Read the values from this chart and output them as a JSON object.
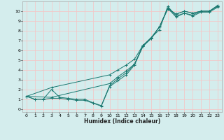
{
  "xlabel": "Humidex (Indice chaleur)",
  "xlim": [
    -0.5,
    23.5
  ],
  "ylim": [
    -0.3,
    11.0
  ],
  "xticks": [
    0,
    1,
    2,
    3,
    4,
    5,
    6,
    7,
    8,
    9,
    10,
    11,
    12,
    13,
    14,
    15,
    16,
    17,
    18,
    19,
    20,
    21,
    22,
    23
  ],
  "yticks": [
    0,
    1,
    2,
    3,
    4,
    5,
    6,
    7,
    8,
    9,
    10
  ],
  "line_color": "#1a7870",
  "bg_color": "#d4eded",
  "grid_color": "#f2c8c8",
  "line1_x": [
    0,
    1,
    2,
    3,
    4,
    5,
    6,
    7,
    8,
    9,
    10,
    11,
    12,
    13,
    14,
    15,
    16,
    17,
    18,
    19,
    20,
    21,
    22,
    23
  ],
  "line1_y": [
    1.3,
    1.0,
    1.0,
    1.1,
    1.1,
    1.0,
    0.9,
    0.9,
    0.6,
    0.3,
    2.3,
    2.9,
    3.5,
    4.5,
    6.4,
    7.2,
    8.4,
    10.2,
    9.7,
    10.0,
    9.8,
    10.0,
    10.0,
    10.5
  ],
  "line2_x": [
    0,
    1,
    2,
    3,
    4,
    5,
    6,
    7,
    8,
    9,
    10,
    11,
    12,
    13,
    14,
    15,
    16,
    17,
    18,
    19,
    20,
    21,
    22,
    23
  ],
  "line2_y": [
    1.3,
    1.0,
    1.0,
    2.0,
    1.2,
    1.1,
    1.0,
    1.0,
    0.65,
    0.35,
    2.4,
    3.1,
    3.7,
    4.6,
    6.4,
    7.3,
    8.4,
    10.3,
    9.7,
    10.0,
    9.8,
    10.0,
    10.0,
    10.5
  ],
  "line3_x": [
    0,
    3,
    10,
    11,
    12,
    13,
    14,
    15,
    16,
    17,
    18,
    19,
    20,
    21,
    22,
    23
  ],
  "line3_y": [
    1.3,
    2.2,
    3.5,
    4.0,
    4.5,
    5.1,
    6.5,
    7.3,
    8.1,
    10.5,
    9.5,
    9.8,
    9.6,
    10.0,
    10.0,
    10.6
  ],
  "line4_x": [
    0,
    3,
    10,
    11,
    12,
    13,
    14,
    15,
    16,
    17,
    18,
    19,
    20,
    21,
    22,
    23
  ],
  "line4_y": [
    1.3,
    1.2,
    2.6,
    3.3,
    3.9,
    4.6,
    6.5,
    7.2,
    8.4,
    10.3,
    9.4,
    9.8,
    9.5,
    9.9,
    9.9,
    10.4
  ]
}
